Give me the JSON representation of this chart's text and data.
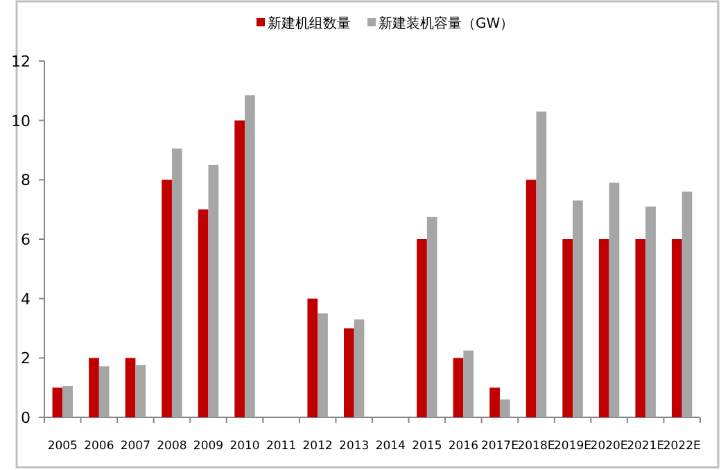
{
  "chart_data": {
    "type": "bar",
    "categories": [
      "2005",
      "2006",
      "2007",
      "2008",
      "2009",
      "2010",
      "2011",
      "2012",
      "2013",
      "2014",
      "2015",
      "2016",
      "2017E",
      "2018E",
      "2019E",
      "2020E",
      "2021E",
      "2022E"
    ],
    "series": [
      {
        "name": "新建机组数量",
        "color": "#c00000",
        "values": [
          1,
          2,
          2,
          8,
          7,
          10,
          0,
          4,
          3,
          0,
          6,
          2,
          1,
          8,
          6,
          6,
          6,
          6
        ]
      },
      {
        "name": "新建装机容量（GW）",
        "color": "#a6a6a6",
        "values": [
          1.05,
          1.72,
          1.76,
          9.05,
          8.5,
          10.85,
          0,
          3.5,
          3.3,
          0,
          6.75,
          2.25,
          0.6,
          10.3,
          7.3,
          7.9,
          7.1,
          7.6
        ]
      }
    ],
    "ylim": [
      0,
      12
    ],
    "yticks": [
      0,
      2,
      4,
      6,
      8,
      10,
      12
    ],
    "grid": false,
    "legend": "top"
  }
}
